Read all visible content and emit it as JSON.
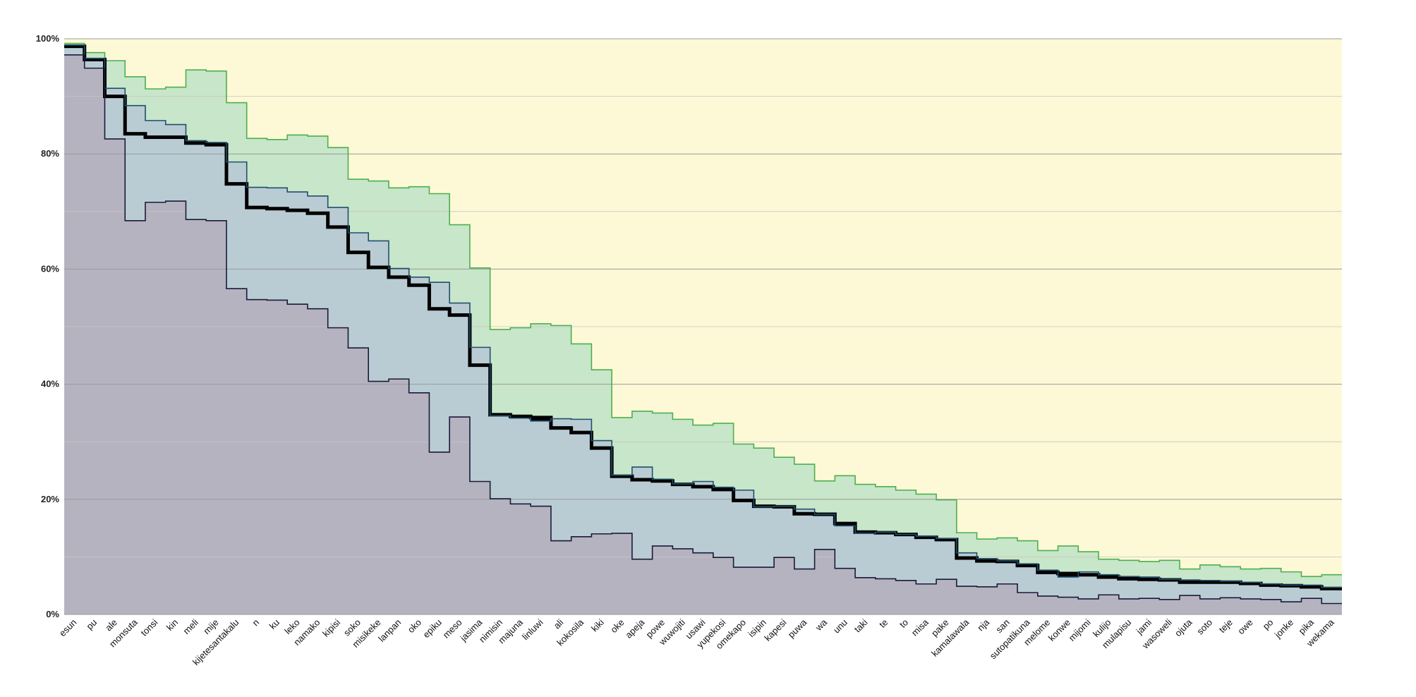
{
  "chart_data": {
    "type": "area",
    "step": true,
    "ylim": [
      0,
      100
    ],
    "ytick_labels": [
      "0%",
      "20%",
      "40%",
      "60%",
      "80%",
      "100%"
    ],
    "ytick_values": [
      0,
      20,
      40,
      60,
      80,
      100
    ],
    "grid": true,
    "legend": "none",
    "categories": [
      "esun",
      "pu",
      "ale",
      "monsuta",
      "tonsi",
      "kin",
      "meli",
      "mije",
      "kijetesantakalu",
      "n",
      "ku",
      "leko",
      "namako",
      "kipisi",
      "soko",
      "misikeke",
      "lanpan",
      "oko",
      "epiku",
      "meso",
      "jasima",
      "nimisin",
      "majuna",
      "linluwi",
      "ali",
      "kokosila",
      "kiki",
      "oke",
      "apeja",
      "powe",
      "wuwojiti",
      "usawi",
      "yupekosi",
      "omekapo",
      "isipin",
      "kapesi",
      "puwa",
      "wa",
      "unu",
      "taki",
      "te",
      "to",
      "misa",
      "pake",
      "kamalawala",
      "nja",
      "san",
      "sutopatikuna",
      "melome",
      "konwe",
      "mijomi",
      "kulijo",
      "mulapisu",
      "jami",
      "wasoweli",
      "ojuta",
      "soto",
      "teje",
      "owe",
      "po",
      "jonke",
      "pika",
      "wekama"
    ],
    "series": [
      {
        "role": "background",
        "color": "#fdf9d6",
        "values": [
          100,
          100,
          100,
          100,
          100,
          100,
          100,
          100,
          100,
          100,
          100,
          100,
          100,
          100,
          100,
          100,
          100,
          100,
          100,
          100,
          100,
          100,
          100,
          100,
          100,
          100,
          100,
          100,
          100,
          100,
          100,
          100,
          100,
          100,
          100,
          100,
          100,
          100,
          100,
          100,
          100,
          100,
          100,
          100,
          100,
          100,
          100,
          100,
          100,
          100,
          100,
          100,
          100,
          100,
          100,
          100,
          100,
          100,
          100,
          100,
          100,
          100,
          100
        ]
      },
      {
        "role": "upper-band",
        "color": "#c8e6c9",
        "line_color": "#4caf50",
        "values": [
          99.2,
          97.6,
          96.2,
          93.4,
          91.3,
          91.6,
          94.6,
          94.4,
          88.9,
          82.7,
          82.5,
          83.3,
          83.1,
          81.1,
          75.6,
          75.3,
          74.1,
          74.3,
          73.1,
          67.7,
          60.2,
          49.5,
          49.8,
          50.5,
          50.2,
          47.0,
          42.5,
          34.2,
          35.3,
          35.0,
          33.9,
          32.9,
          33.2,
          29.6,
          28.9,
          27.3,
          26.1,
          23.2,
          24.1,
          22.6,
          22.2,
          21.6,
          20.9,
          19.9,
          14.2,
          13.1,
          13.3,
          12.8,
          11.1,
          11.9,
          10.9,
          9.6,
          9.4,
          9.2,
          9.4,
          7.9,
          8.6,
          8.3,
          7.9,
          8.0,
          7.4,
          6.6,
          6.9
        ]
      },
      {
        "role": "median",
        "color": "#000000",
        "values": [
          98.7,
          96.4,
          90.0,
          83.5,
          82.9,
          82.9,
          81.9,
          81.6,
          74.8,
          70.7,
          70.5,
          70.2,
          69.7,
          67.3,
          62.9,
          60.3,
          58.6,
          57.2,
          53.1,
          52.0,
          43.3,
          34.7,
          34.4,
          34.2,
          32.4,
          31.6,
          28.9,
          24.0,
          23.4,
          23.2,
          22.6,
          22.2,
          21.7,
          19.8,
          18.8,
          18.7,
          17.5,
          17.4,
          15.8,
          14.3,
          14.2,
          13.9,
          13.4,
          13.0,
          9.8,
          9.3,
          9.2,
          8.5,
          7.3,
          7.1,
          6.9,
          6.5,
          6.2,
          6.1,
          6.0,
          5.6,
          5.6,
          5.6,
          5.4,
          5.1,
          5.0,
          4.8,
          4.5
        ]
      },
      {
        "role": "upper-mid-band",
        "color": "#b9ccd4",
        "line_color": "#1f4f6d",
        "values": [
          98.9,
          96.6,
          91.4,
          88.4,
          85.8,
          85.1,
          82.3,
          82.0,
          78.6,
          74.2,
          74.1,
          73.4,
          72.7,
          70.7,
          66.3,
          64.9,
          60.1,
          58.6,
          57.7,
          54.1,
          46.4,
          34.5,
          34.1,
          33.6,
          34.0,
          33.9,
          30.2,
          24.2,
          25.6,
          23.5,
          22.7,
          23.1,
          22.1,
          21.6,
          18.7,
          18.8,
          18.3,
          17.4,
          15.4,
          14.1,
          14.3,
          13.9,
          13.6,
          13.2,
          10.7,
          9.7,
          9.3,
          8.8,
          7.7,
          6.5,
          7.4,
          6.9,
          6.6,
          6.5,
          6.1,
          6.0,
          5.9,
          5.8,
          5.6,
          5.3,
          5.1,
          5.1,
          4.7
        ]
      },
      {
        "role": "lower-band",
        "color": "#b6b3c0",
        "line_color": "#1a1a3a",
        "values": [
          97.2,
          94.9,
          82.6,
          68.4,
          71.6,
          71.8,
          68.6,
          68.4,
          56.6,
          54.7,
          54.6,
          53.9,
          53.1,
          49.8,
          46.3,
          40.5,
          40.9,
          38.5,
          28.2,
          34.3,
          23.1,
          20.1,
          19.2,
          18.8,
          12.8,
          13.5,
          14.0,
          14.1,
          9.6,
          11.9,
          11.4,
          10.7,
          9.9,
          8.2,
          8.2,
          9.9,
          7.9,
          11.3,
          8.0,
          6.4,
          6.2,
          5.9,
          5.3,
          6.1,
          4.9,
          4.8,
          5.3,
          3.8,
          3.2,
          3.0,
          2.7,
          3.4,
          2.7,
          2.8,
          2.6,
          3.3,
          2.7,
          2.9,
          2.7,
          2.6,
          2.2,
          2.8,
          1.9
        ]
      }
    ]
  }
}
